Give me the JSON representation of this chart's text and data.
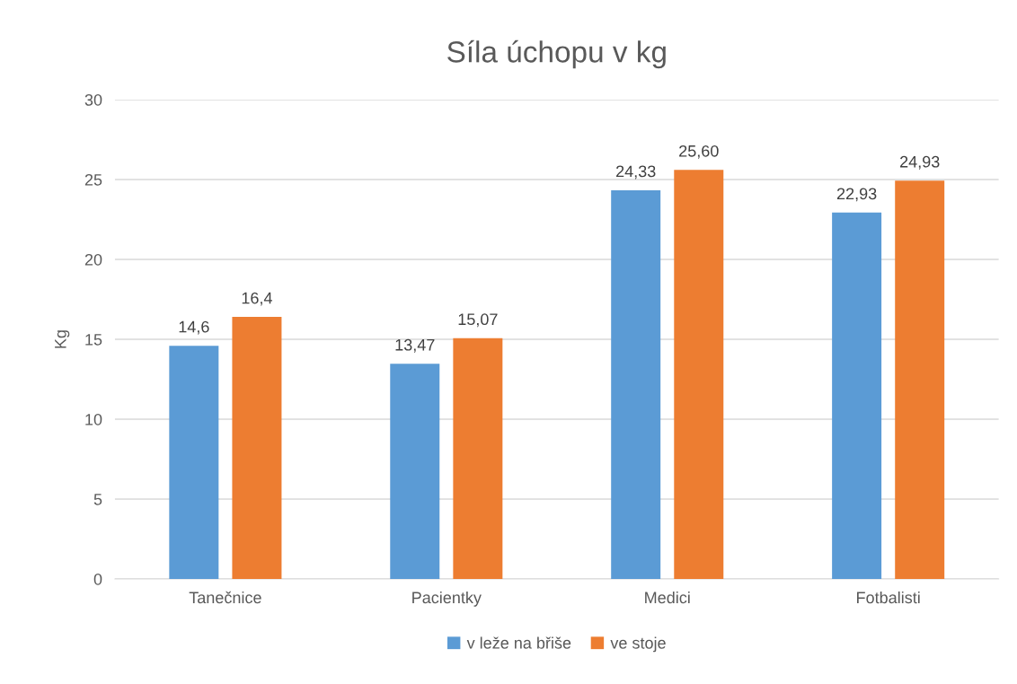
{
  "chart_data": {
    "type": "bar",
    "title": "Síla úchopu v kg",
    "ylabel": "Kg",
    "categories": [
      "Tanečnice",
      "Pacientky",
      "Medici",
      "Fotbalisti"
    ],
    "series": [
      {
        "name": "v leže na břiše",
        "color": "#5b9bd5",
        "values": [
          14.6,
          13.47,
          24.33,
          22.93
        ],
        "value_labels": [
          "14,6",
          "13,47",
          "24,33",
          "22,93"
        ]
      },
      {
        "name": "ve stoje",
        "color": "#ed7d31",
        "values": [
          16.4,
          15.07,
          25.6,
          24.93
        ],
        "value_labels": [
          "16,4",
          "15,07",
          "25,60",
          "24,93"
        ]
      }
    ],
    "ylim": [
      0,
      30
    ],
    "yticks": [
      0,
      5,
      10,
      15,
      20,
      25,
      30
    ],
    "grid": "y",
    "legend": "bottom"
  }
}
